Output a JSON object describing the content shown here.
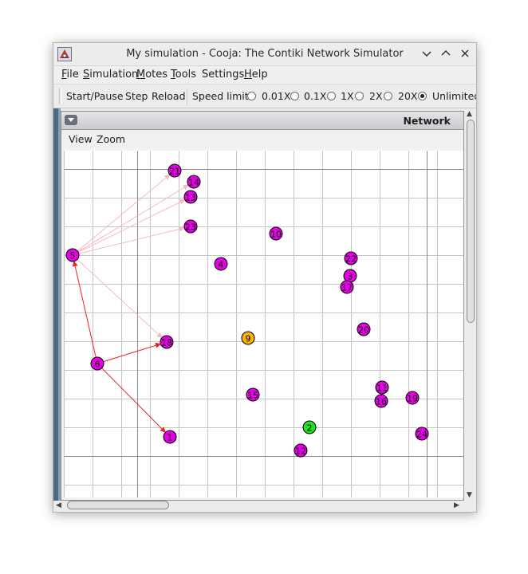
{
  "window": {
    "title": "My simulation - Cooja: The Contiki Network Simulator"
  },
  "menubar": {
    "items": [
      {
        "mnemonic": "F",
        "rest": "ile"
      },
      {
        "mnemonic": "S",
        "rest": "imulation"
      },
      {
        "mnemonic": "M",
        "rest": "otes"
      },
      {
        "mnemonic": "T",
        "rest": "ools"
      },
      {
        "mnemonic": "",
        "rest": "Settings"
      },
      {
        "mnemonic": "H",
        "rest": "elp"
      }
    ]
  },
  "toolbar": {
    "start_pause": "Start/Pause",
    "step": "Step",
    "reload": "Reload",
    "speed_label": "Speed limit:",
    "speeds": [
      "0.01X",
      "0.1X",
      "1X",
      "2X",
      "20X",
      "Unlimited"
    ],
    "selected_speed": "Unlimited"
  },
  "network_panel": {
    "title": "Network",
    "menu": {
      "view": "View",
      "zoom": "Zoom"
    }
  },
  "colors": {
    "mote_default": "#e600e6",
    "mote_selected": "#ffb300",
    "mote_green": "#22e022",
    "arrow_red": "#ee2222",
    "arrow_pink": "#f5b8c8",
    "grid": "#c6c6c6"
  },
  "motes": [
    {
      "id": "21",
      "color": "magenta"
    },
    {
      "id": "14",
      "color": "magenta"
    },
    {
      "id": "13",
      "color": "magenta"
    },
    {
      "id": "23",
      "color": "magenta"
    },
    {
      "id": "10",
      "color": "magenta"
    },
    {
      "id": "5",
      "color": "magenta"
    },
    {
      "id": "4",
      "color": "magenta"
    },
    {
      "id": "22",
      "color": "magenta"
    },
    {
      "id": "3",
      "color": "magenta"
    },
    {
      "id": "17",
      "color": "magenta"
    },
    {
      "id": "20",
      "color": "magenta"
    },
    {
      "id": "18",
      "color": "magenta"
    },
    {
      "id": "9",
      "color": "orange"
    },
    {
      "id": "6",
      "color": "magenta"
    },
    {
      "id": "11",
      "color": "magenta"
    },
    {
      "id": "16",
      "color": "magenta"
    },
    {
      "id": "19",
      "color": "magenta"
    },
    {
      "id": "15",
      "color": "magenta"
    },
    {
      "id": "2",
      "color": "green"
    },
    {
      "id": "24",
      "color": "magenta"
    },
    {
      "id": "1",
      "color": "magenta"
    },
    {
      "id": "12",
      "color": "magenta"
    }
  ],
  "links": [
    {
      "from": "6",
      "to": "5",
      "style": "red"
    },
    {
      "from": "6",
      "to": "18",
      "style": "red"
    },
    {
      "from": "6",
      "to": "1",
      "style": "red"
    },
    {
      "from": "5",
      "to": "21",
      "style": "pink"
    },
    {
      "from": "5",
      "to": "14",
      "style": "pink"
    },
    {
      "from": "5",
      "to": "13",
      "style": "pink"
    },
    {
      "from": "5",
      "to": "23",
      "style": "pink"
    },
    {
      "from": "5",
      "to": "18",
      "style": "pink"
    }
  ]
}
